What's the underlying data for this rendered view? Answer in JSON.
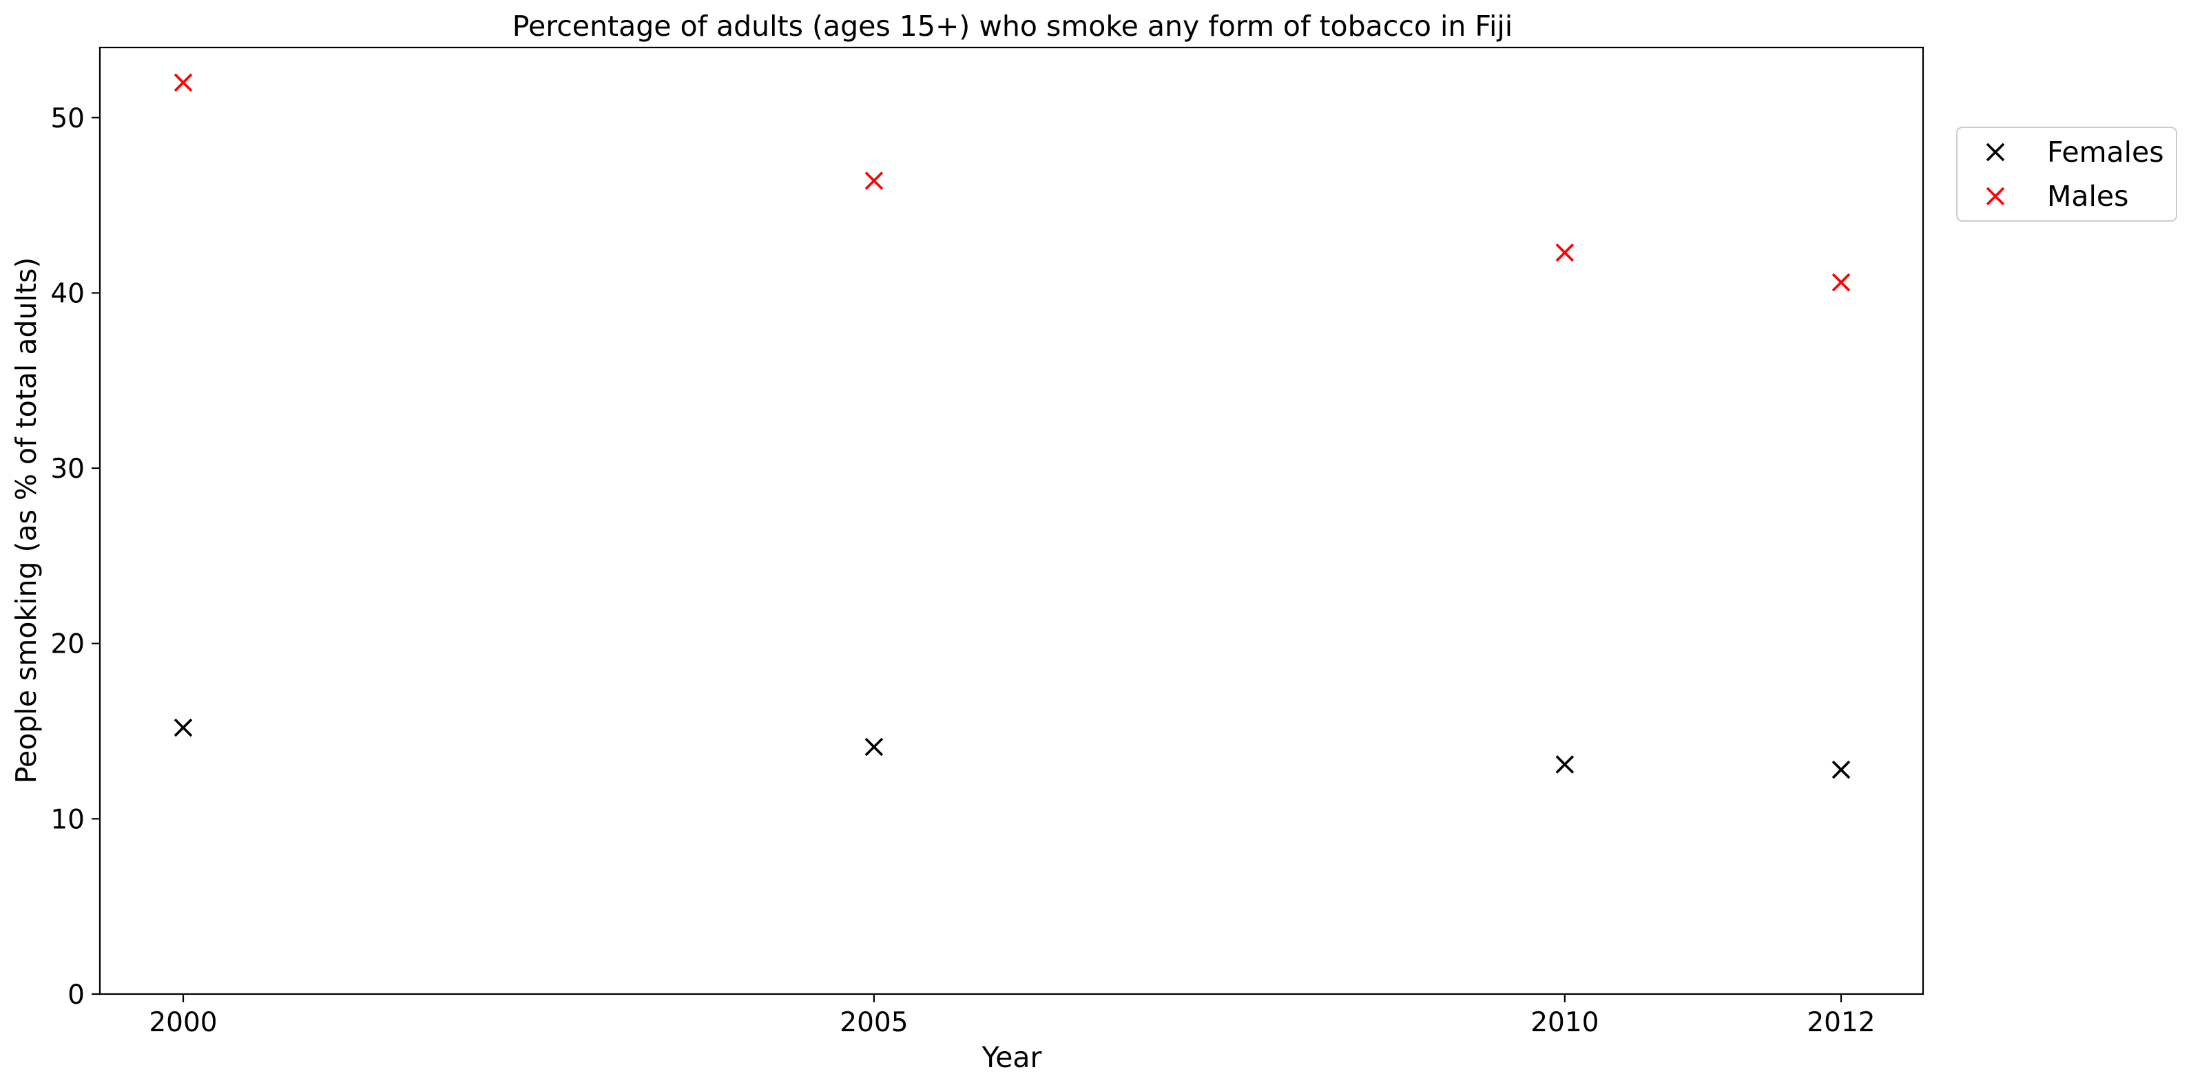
{
  "chart_data": {
    "type": "scatter",
    "title": "Percentage of adults (ages 15+) who smoke any form of tobacco in Fiji",
    "xlabel": "Year",
    "ylabel": "People smoking (as % of total adults)",
    "categories": [
      "2000",
      "2005",
      "2010",
      "2012"
    ],
    "yticks": [
      0,
      10,
      20,
      30,
      40,
      50
    ],
    "ylim": [
      0,
      54
    ],
    "grid": false,
    "legend_position": "outside-right-top",
    "marker": "x",
    "series": [
      {
        "name": "Females",
        "color": "#000000",
        "values": [
          15.2,
          14.1,
          13.1,
          12.8
        ]
      },
      {
        "name": "Males",
        "color": "#ff0000",
        "values": [
          52.0,
          46.4,
          42.3,
          40.6
        ]
      }
    ]
  }
}
